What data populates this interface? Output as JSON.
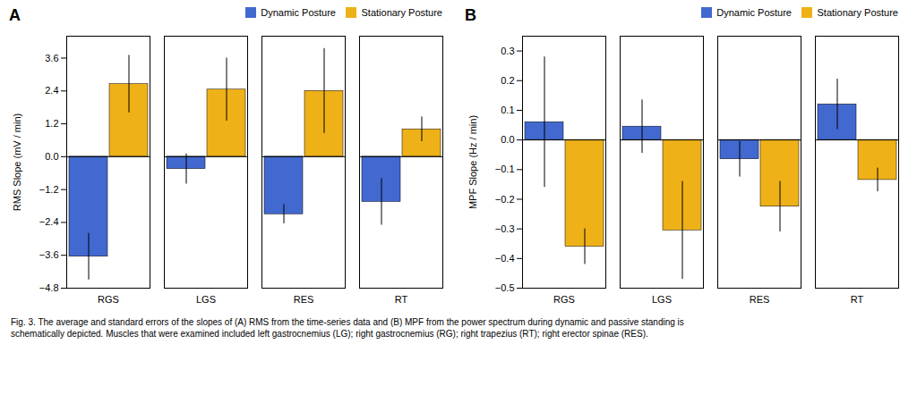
{
  "chart_data": [
    {
      "type": "bar",
      "title": "A",
      "ylabel": "RMS Slope (mV / min)",
      "categories": [
        "RGS",
        "LGS",
        "RES",
        "RT"
      ],
      "series": [
        {
          "name": "Dynamic Posture",
          "values": [
            -3.65,
            -0.45,
            -2.1,
            -1.65
          ],
          "errors": [
            0.85,
            0.55,
            0.35,
            0.85
          ]
        },
        {
          "name": "Stationary Posture",
          "values": [
            2.65,
            2.45,
            2.4,
            1.0
          ],
          "errors": [
            1.05,
            1.15,
            1.55,
            0.45
          ]
        }
      ],
      "ylim": [
        -4.8,
        4.4
      ],
      "yticks": [
        -4.8,
        -3.6,
        -2.4,
        -1.2,
        {
          "value": 0,
          "label": "0.0"
        },
        1.2,
        2.4,
        3.6
      ],
      "grid": false,
      "legend": "upper right"
    },
    {
      "type": "bar",
      "title": "B",
      "ylabel": "MPF Slope (Hz / min)",
      "categories": [
        "RGS",
        "LGS",
        "RES",
        "RT"
      ],
      "series": [
        {
          "name": "Dynamic Posture",
          "values": [
            0.06,
            0.045,
            -0.065,
            0.12
          ],
          "errors": [
            0.22,
            0.09,
            0.06,
            0.085
          ]
        },
        {
          "name": "Stationary Posture",
          "values": [
            -0.36,
            -0.305,
            -0.225,
            -0.135
          ],
          "errors": [
            0.06,
            0.165,
            0.085,
            0.04
          ]
        }
      ],
      "ylim": [
        -0.5,
        0.35
      ],
      "yticks": [
        -0.5,
        -0.4,
        -0.3,
        -0.2,
        -0.1,
        {
          "value": 0,
          "label": "0.0"
        },
        0.1,
        0.2,
        0.3
      ],
      "grid": false,
      "legend": "upper right"
    }
  ],
  "caption": "Fig. 3. The average and standard errors of the slopes of (A) RMS from the time-series data and (B) MPF from the power spectrum during dynamic and passive standing is\nschematically depicted. Muscles that were examined included left gastrocnemius (LG); right gastrocnemius (RG); right trapezius (RT); right erector spinae (RES)."
}
